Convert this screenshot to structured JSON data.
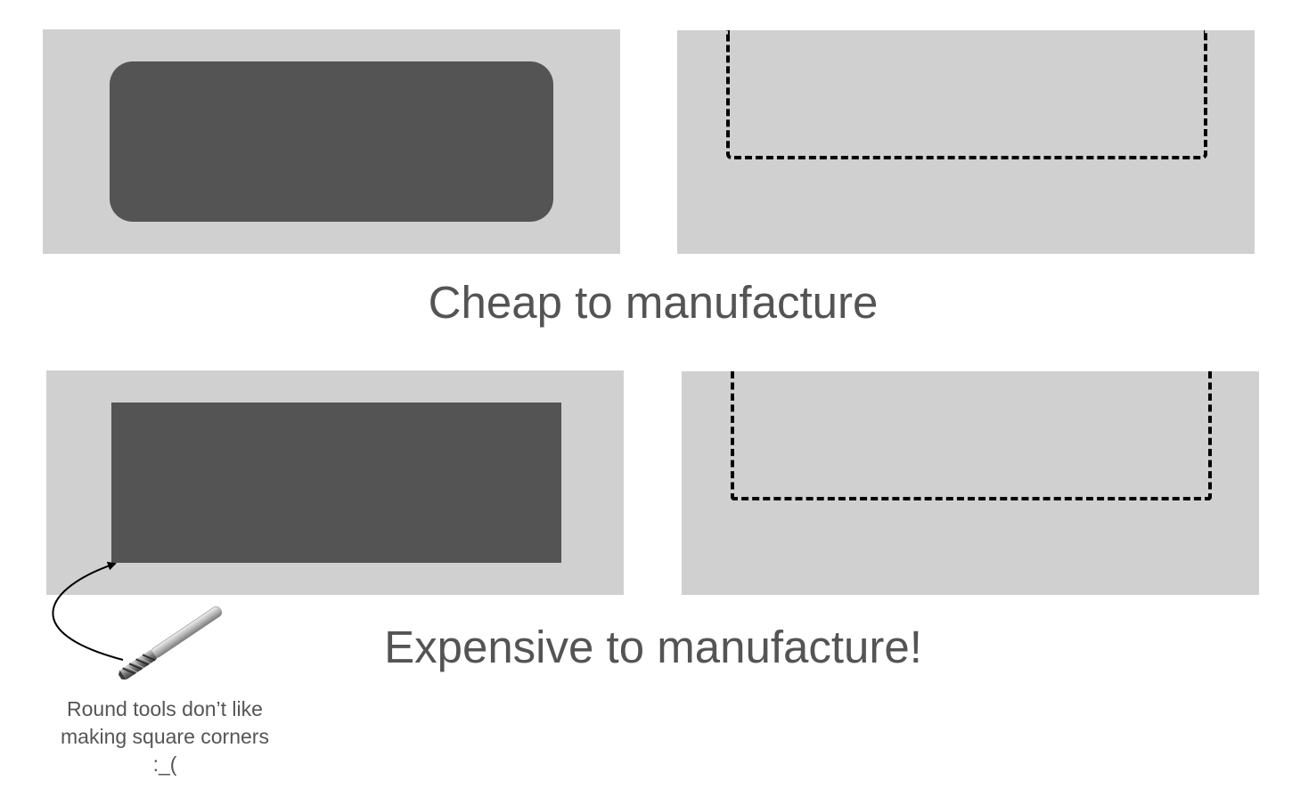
{
  "captions": {
    "cheap": "Cheap to manufacture",
    "expensive": "Expensive to manufacture!"
  },
  "note": {
    "lines": [
      "Round tools don’t like",
      "making square corners",
      ":_("
    ]
  },
  "colors": {
    "panel": "#d0d0d0",
    "pocket": "#545454",
    "dash": "#000000",
    "text": "#545454"
  },
  "icons": {
    "tool": "end-mill-icon",
    "arrow": "curved-arrow"
  }
}
